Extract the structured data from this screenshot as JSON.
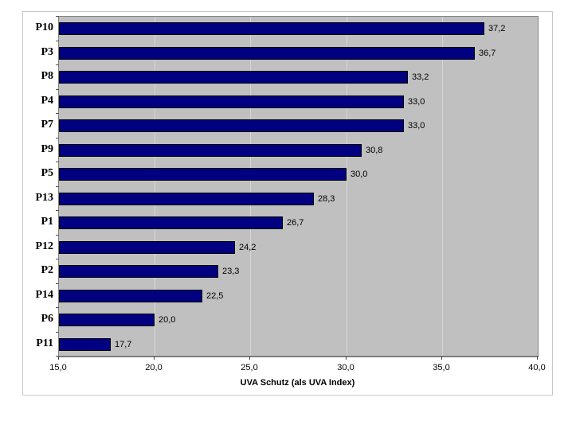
{
  "chart_data": {
    "type": "bar",
    "orientation": "horizontal",
    "title": "",
    "xlabel": "UVA Schutz (als UVA Index)",
    "ylabel": "",
    "categories": [
      "P10",
      "P3",
      "P8",
      "P4",
      "P7",
      "P9",
      "P5",
      "P13",
      "P1",
      "P12",
      "P2",
      "P14",
      "P6",
      "P11"
    ],
    "values": [
      37.2,
      36.7,
      33.2,
      33.0,
      33.0,
      30.8,
      30.0,
      28.3,
      26.7,
      24.2,
      23.3,
      22.5,
      20.0,
      17.7
    ],
    "value_labels": [
      "37,2",
      "36,7",
      "33,2",
      "33,0",
      "33,0",
      "30,8",
      "30,0",
      "28,3",
      "26,7",
      "24,2",
      "23,3",
      "22,5",
      "20,0",
      "17,7"
    ],
    "xlim": [
      15,
      40
    ],
    "xticks": [
      15,
      20,
      25,
      30,
      35,
      40
    ],
    "xtick_labels": [
      "15,0",
      "20,0",
      "25,0",
      "30,0",
      "35,0",
      "40,0"
    ],
    "grid": true,
    "legend": "none",
    "colors": {
      "bar_fill": "#000080",
      "bar_border": "#000000",
      "plot_background": "#c0c0c0",
      "gridline": "#d6d6d6",
      "axis_line": "#7d7d7d",
      "frame_border": "#c6c6c6",
      "text": "#000000"
    }
  }
}
